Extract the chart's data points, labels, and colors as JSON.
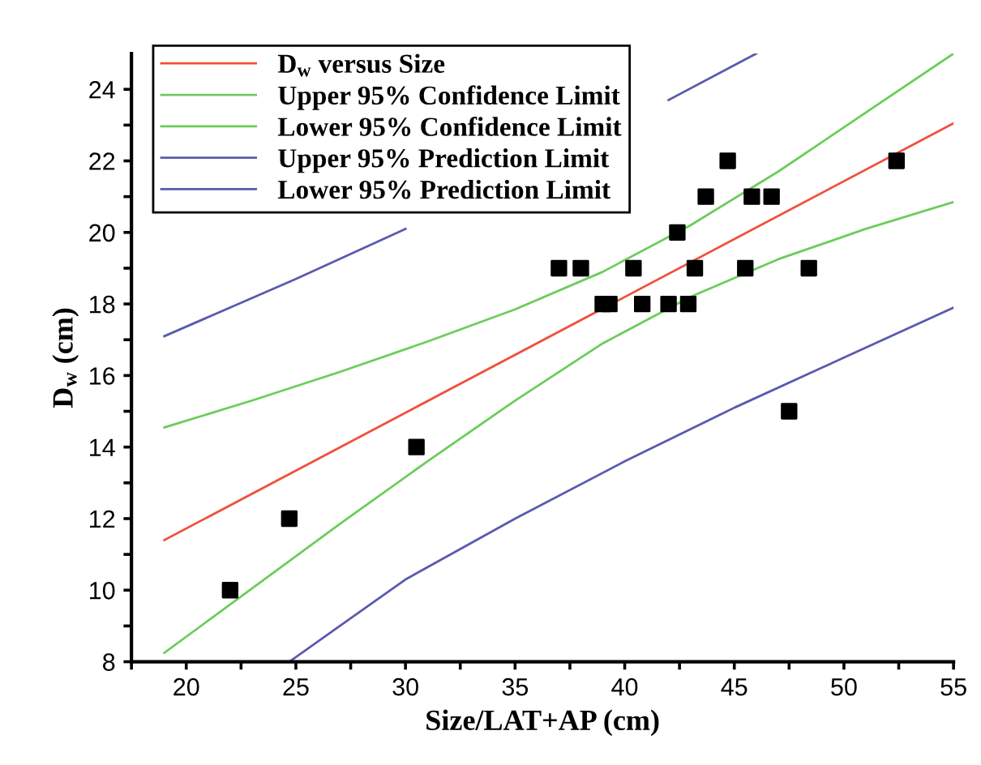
{
  "chart_data": {
    "type": "scatter",
    "xlabel": "Size/LAT+AP (cm)",
    "ylabel": "D$_{w}$ (cm)",
    "xlim": [
      17.5,
      55
    ],
    "ylim": [
      8,
      25
    ],
    "xticks": [
      {
        "value": 17.5,
        "label": null
      },
      20,
      {
        "value": 22.5,
        "label": null
      },
      25,
      {
        "value": 27.5,
        "label": null
      },
      30,
      {
        "value": 32.5,
        "label": null
      },
      35,
      {
        "value": 37.5,
        "label": null
      },
      40,
      {
        "value": 42.5,
        "label": null
      },
      45,
      {
        "value": 47.5,
        "label": null
      },
      50,
      {
        "value": 52.5,
        "label": null
      },
      55
    ],
    "yticks": [
      8,
      {
        "value": 9,
        "label": null
      },
      10,
      {
        "value": 11,
        "label": null
      },
      12,
      {
        "value": 13,
        "label": null
      },
      14,
      {
        "value": 15,
        "label": null
      },
      16,
      {
        "value": 17,
        "label": null
      },
      18,
      {
        "value": 19,
        "label": null
      },
      20,
      {
        "value": 21,
        "label": null
      },
      22,
      {
        "value": 23,
        "label": null
      },
      24
    ],
    "grid": false,
    "legend": "top left",
    "series": [
      {
        "color": "#000000",
        "marker": "square",
        "x": [
          22.0,
          24.7,
          30.5,
          37.0,
          38.0,
          39.0,
          39.3,
          40.4,
          40.8,
          42.0,
          42.4,
          42.9,
          43.2,
          43.7,
          44.7,
          45.5,
          45.8,
          46.7,
          47.5,
          48.4,
          52.4
        ],
        "values": [
          10,
          12,
          14,
          19,
          19,
          18,
          18,
          19,
          18,
          18,
          20,
          18,
          19,
          21,
          22,
          19,
          21,
          21,
          15,
          19,
          22
        ]
      },
      {
        "type": "line",
        "name": "D$_{w}$ versus Size",
        "color": "#f0503c",
        "x": [
          19,
          55
        ],
        "values": [
          11.4,
          23.05
        ]
      },
      {
        "type": "line",
        "name": "Upper 95% Confidence Limit",
        "color": "#6ccc5c",
        "x": [
          19,
          23,
          27,
          31,
          35,
          39,
          43,
          47,
          51,
          55
        ],
        "values": [
          14.55,
          15.3,
          16.1,
          16.95,
          17.85,
          18.9,
          20.2,
          21.7,
          23.35,
          25.0
        ]
      },
      {
        "type": "line",
        "name": "Lower 95% Confidence Limit",
        "color": "#6ccc5c",
        "x": [
          19,
          23,
          27,
          31,
          35,
          39,
          43,
          47,
          51,
          55
        ],
        "values": [
          8.25,
          10.05,
          11.85,
          13.6,
          15.3,
          16.9,
          18.2,
          19.25,
          20.1,
          20.85
        ]
      },
      {
        "type": "line",
        "name": "Upper 95% Prediction Limit",
        "color": "#5a5aaf",
        "x": [
          19,
          25,
          30,
          35,
          42,
          46
        ],
        "values": [
          17.1,
          18.7,
          20.1,
          null,
          23.7,
          25.0
        ]
      },
      {
        "type": "line",
        "name": "Lower 95% Prediction Limit",
        "color": "#5a5aaf",
        "x": [
          24.7,
          30,
          35,
          40,
          45,
          50,
          55
        ],
        "values": [
          8.0,
          10.3,
          12.0,
          13.6,
          15.1,
          16.5,
          17.9
        ]
      }
    ]
  }
}
